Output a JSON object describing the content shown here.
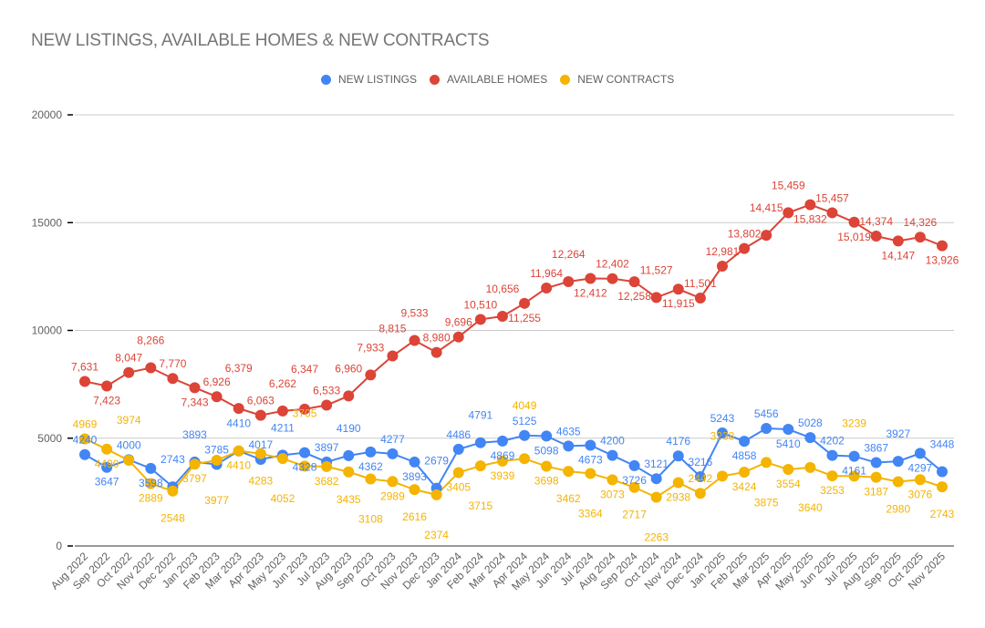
{
  "chart_data": {
    "type": "line",
    "title": "NEW LISTINGS, AVAILABLE HOMES & NEW CONTRACTS",
    "legend_position": "top",
    "grid": true,
    "ylim": [
      0,
      20000
    ],
    "yticks": [
      "0",
      "5000",
      "10000",
      "15000",
      "20000"
    ],
    "categories": [
      "Aug 2022",
      "Sep 2022",
      "Oct 2022",
      "Nov 2022",
      "Dec 2022",
      "Jan 2023",
      "Feb 2023",
      "Mar 2023",
      "Apr 2023",
      "May 2023",
      "Jun 2023",
      "Jul 2023",
      "Aug 2023",
      "Sep 2023",
      "Oct 2023",
      "Nov 2023",
      "Dec 2023",
      "Jan 2024",
      "Feb 2024",
      "Mar 2024",
      "Apr 2024",
      "May 2024",
      "Jun 2024",
      "Jul 2024",
      "Aug 2024",
      "Sep 2024",
      "Oct 2024",
      "Nov 2024",
      "Dec 2024",
      "Jan 2025",
      "Feb 2025",
      "Mar 2025",
      "Apr 2025",
      "May 2025",
      "Jun 2025",
      "Jul 2025",
      "Aug 2025",
      "Sep 2025",
      "Oct 2025",
      "Nov 2025"
    ],
    "series": [
      {
        "name": "NEW LISTINGS",
        "color": "#4285f4",
        "label_format": "plain",
        "values": [
          4240,
          3647,
          4000,
          3598,
          2743,
          3893,
          3785,
          4410,
          4017,
          4211,
          4328,
          3897,
          4190,
          4362,
          4277,
          3893,
          2679,
          4486,
          4791,
          4869,
          5125,
          5098,
          4635,
          4673,
          4200,
          3726,
          3121,
          4176,
          3216,
          5243,
          4858,
          5456,
          5410,
          5028,
          4202,
          4161,
          3867,
          3927,
          4297,
          3448
        ]
      },
      {
        "name": "AVAILABLE HOMES",
        "color": "#db4437",
        "label_format": "comma",
        "values": [
          7631,
          7423,
          8047,
          8266,
          7770,
          7343,
          6926,
          6379,
          6063,
          6262,
          6347,
          6533,
          6960,
          7933,
          8815,
          9533,
          8980,
          9696,
          10510,
          10656,
          11255,
          11964,
          12264,
          12412,
          12402,
          12258,
          11527,
          11915,
          11501,
          12981,
          13802,
          14415,
          15459,
          15832,
          15457,
          15019,
          14374,
          14147,
          14326,
          13926
        ]
      },
      {
        "name": "NEW CONTRACTS",
        "color": "#f4b400",
        "label_format": "plain",
        "values": [
          4969,
          4490,
          3974,
          2889,
          2548,
          3797,
          3977,
          4410,
          4283,
          4052,
          3705,
          3682,
          3435,
          3108,
          2989,
          2616,
          2374,
          3405,
          3715,
          3939,
          4049,
          3698,
          3462,
          3364,
          3073,
          2717,
          2263,
          2938,
          2442,
          3238,
          3424,
          3875,
          3554,
          3640,
          3253,
          3239,
          3187,
          2980,
          3076,
          2743
        ]
      }
    ]
  }
}
